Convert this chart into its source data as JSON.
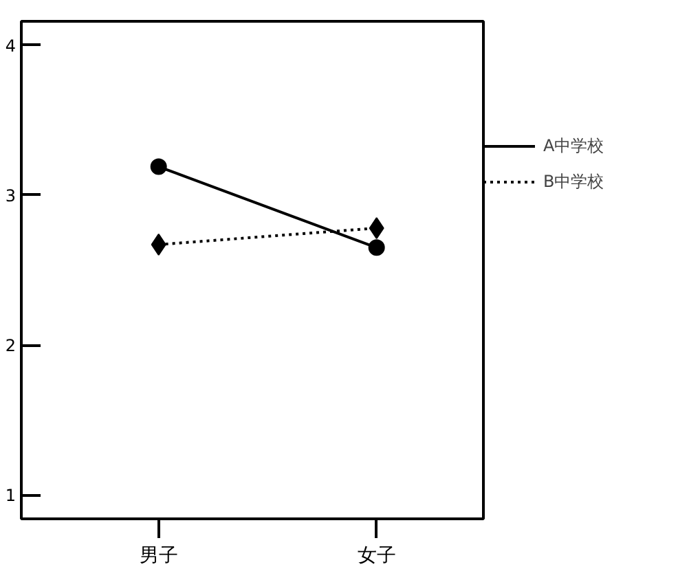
{
  "chart_data": {
    "type": "line",
    "categories": [
      "男子",
      "女子"
    ],
    "series": [
      {
        "name": "A中学校",
        "color": "#000000",
        "values": [
          3.19,
          2.65
        ],
        "marker": "circle",
        "line_style": "solid"
      },
      {
        "name": "B中学校",
        "color": "#000000",
        "values": [
          2.67,
          2.78
        ],
        "marker": "diamond",
        "line_style": "dotted"
      }
    ],
    "ylim": [
      0.84,
      4.16
    ],
    "yticks": [
      1,
      2,
      3,
      4
    ],
    "legend": "right"
  }
}
